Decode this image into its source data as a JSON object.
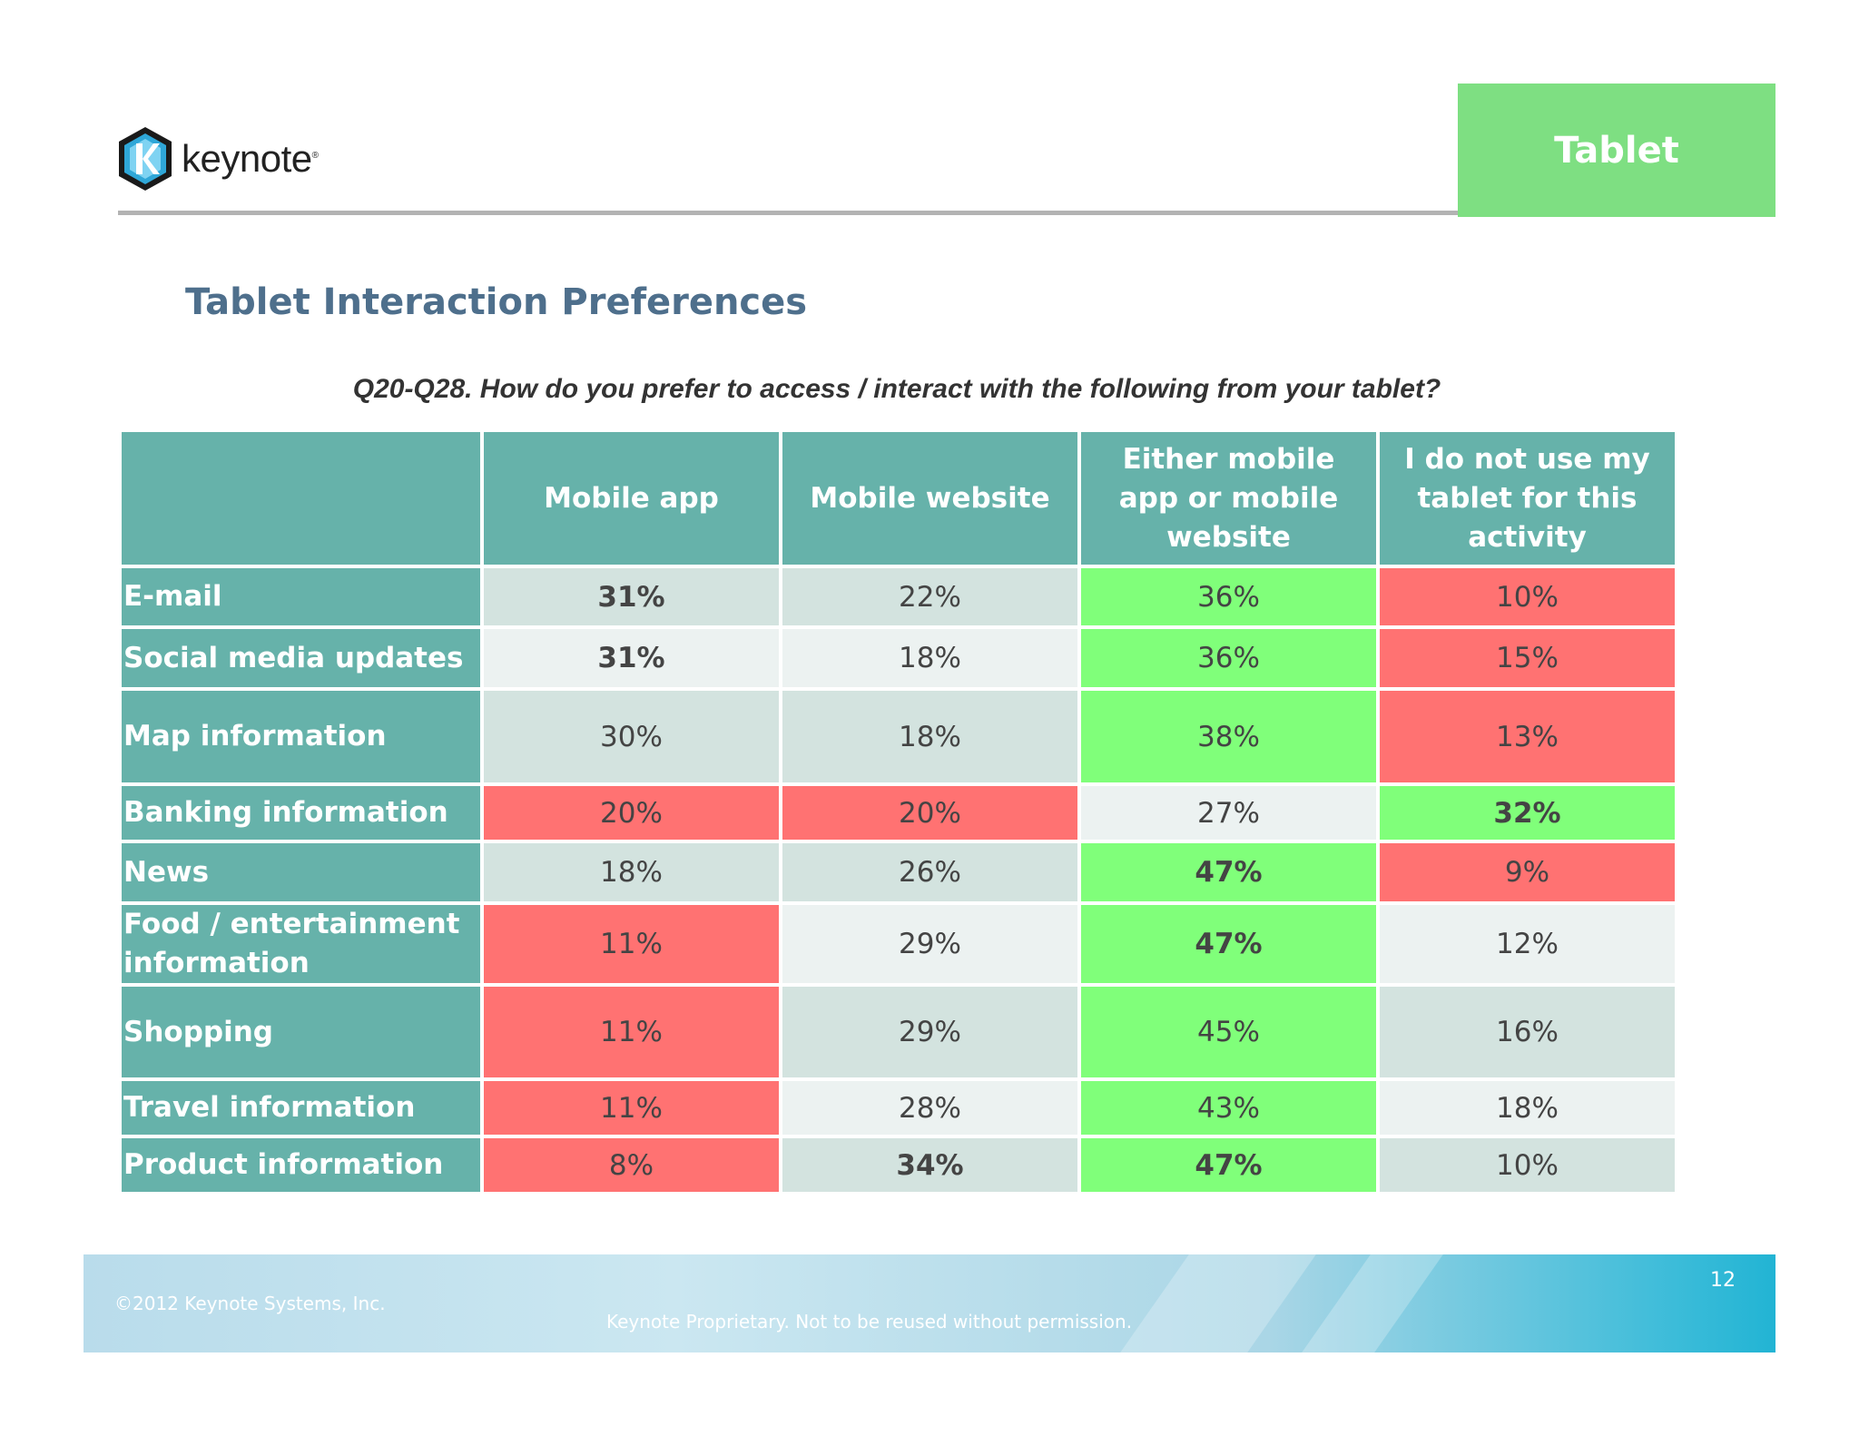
{
  "brand": {
    "name": "keynote",
    "mark": "K"
  },
  "section_tag": "Tablet",
  "title": "Tablet Interaction Preferences",
  "question": "Q20-Q28. How do you prefer to access / interact with the following from your tablet?",
  "table": {
    "columns": [
      "",
      "Mobile app",
      "Mobile website",
      "Either mobile app or  mobile website",
      "I do not use my tablet for this activity"
    ],
    "rows": [
      {
        "label": "E-mail",
        "values": [
          "31%",
          "22%",
          "36%",
          "10%"
        ]
      },
      {
        "label": "Social media updates",
        "values": [
          "31%",
          "18%",
          "36%",
          "15%"
        ]
      },
      {
        "label": "Map information",
        "values": [
          "30%",
          "18%",
          "38%",
          "13%"
        ]
      },
      {
        "label": "Banking information",
        "values": [
          "20%",
          "20%",
          "27%",
          "32%"
        ]
      },
      {
        "label": "News",
        "values": [
          "18%",
          "26%",
          "47%",
          "9%"
        ]
      },
      {
        "label": "Food / entertainment information",
        "values": [
          "11%",
          "29%",
          "47%",
          "12%"
        ]
      },
      {
        "label": "Shopping",
        "values": [
          "11%",
          "29%",
          "45%",
          "16%"
        ]
      },
      {
        "label": "Travel information",
        "values": [
          "11%",
          "28%",
          "43%",
          "18%"
        ]
      },
      {
        "label": "Product information",
        "values": [
          "8%",
          "34%",
          "47%",
          "10%"
        ]
      }
    ]
  },
  "colors": {
    "header": "#66b2aa",
    "high": "#80ff7a",
    "low": "#ff7272",
    "neutral_a": "#d3e3df",
    "neutral_b": "#ecf2f1",
    "tag": "#7edf82",
    "title": "#4e6f8c"
  },
  "footer": {
    "copyright": "©2012 Keynote Systems, Inc.",
    "proprietary": "Keynote Proprietary. Not to be reused without permission.",
    "page_number": "12"
  }
}
